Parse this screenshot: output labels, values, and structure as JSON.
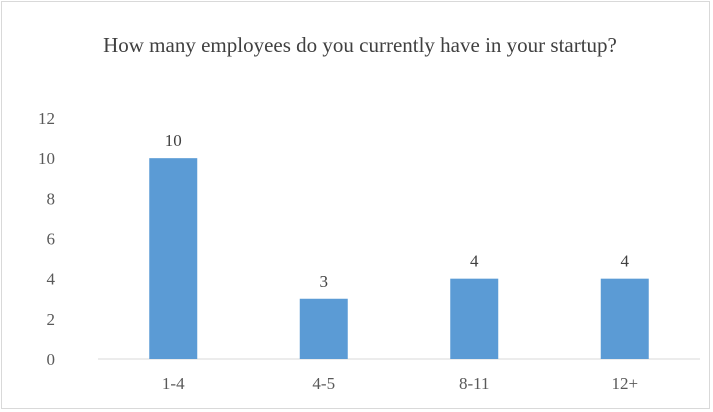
{
  "chart_data": {
    "type": "bar",
    "title": "How many employees do you currently have in your startup?",
    "categories": [
      "1-4",
      "4-5",
      "8-11",
      "12+"
    ],
    "values": [
      10,
      3,
      4,
      4
    ],
    "data_labels": [
      "10",
      "3",
      "4",
      "4"
    ],
    "xlabel": "",
    "ylabel": "",
    "ylim": [
      0,
      12
    ],
    "yticks": [
      0,
      2,
      4,
      6,
      8,
      10,
      12
    ],
    "grid": false,
    "legend": "none",
    "bar_color": "#5b9bd5",
    "axis_color": "#d9d9d9"
  }
}
